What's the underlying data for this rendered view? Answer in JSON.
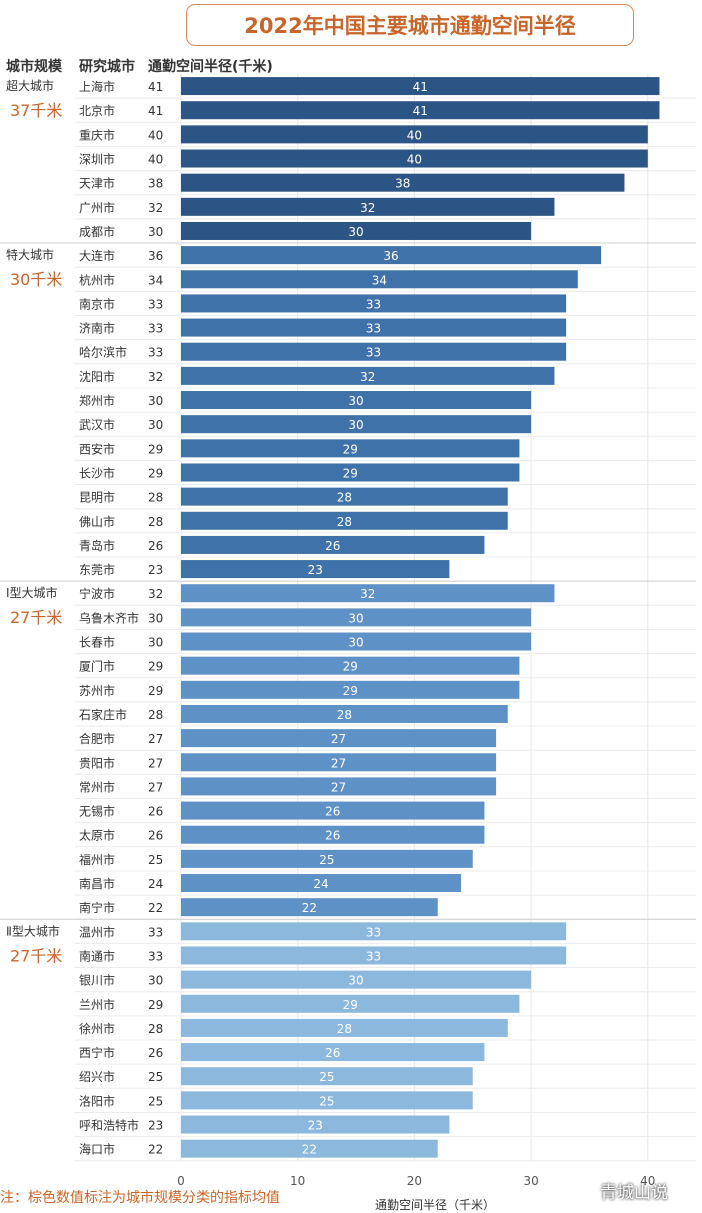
{
  "title": "2022年中国主要城市通勤空间半径",
  "headers": {
    "tier": "城市规模",
    "city": "研究城市",
    "value": "通勤空间半径(千米)"
  },
  "note": "注：棕色数值标注为城市规模分类的指标均值",
  "watermark": "青城山说",
  "colors": {
    "title": "#c8652a",
    "tier_avg": "#c8652a",
    "tier_fills": [
      "#2c5585",
      "#3f72a8",
      "#5e92c6",
      "#8db8dd"
    ]
  },
  "chart_data": {
    "type": "bar",
    "orientation": "horizontal",
    "xlabel": "通勤空间半径（千米）",
    "xlim": [
      0,
      44
    ],
    "xticks": [
      0,
      10,
      20,
      30,
      40
    ],
    "grid": true,
    "groups": [
      {
        "name": "超大城市",
        "average": "37千米",
        "cities": [
          "上海市",
          "北京市",
          "重庆市",
          "深圳市",
          "天津市",
          "广州市",
          "成都市"
        ],
        "values": [
          41,
          41,
          40,
          40,
          38,
          32,
          30
        ]
      },
      {
        "name": "特大城市",
        "average": "30千米",
        "cities": [
          "大连市",
          "杭州市",
          "南京市",
          "济南市",
          "哈尔滨市",
          "沈阳市",
          "郑州市",
          "武汉市",
          "西安市",
          "长沙市",
          "昆明市",
          "佛山市",
          "青岛市",
          "东莞市"
        ],
        "values": [
          36,
          34,
          33,
          33,
          33,
          32,
          30,
          30,
          29,
          29,
          28,
          28,
          26,
          23
        ]
      },
      {
        "name": "Ⅰ型大城市",
        "average": "27千米",
        "cities": [
          "宁波市",
          "乌鲁木齐市",
          "长春市",
          "厦门市",
          "苏州市",
          "石家庄市",
          "合肥市",
          "贵阳市",
          "常州市",
          "无锡市",
          "太原市",
          "福州市",
          "南昌市",
          "南宁市"
        ],
        "values": [
          32,
          30,
          30,
          29,
          29,
          28,
          27,
          27,
          27,
          26,
          26,
          25,
          24,
          22
        ]
      },
      {
        "name": "Ⅱ型大城市",
        "average": "27千米",
        "cities": [
          "温州市",
          "南通市",
          "银川市",
          "兰州市",
          "徐州市",
          "西宁市",
          "绍兴市",
          "洛阳市",
          "呼和浩特市",
          "海口市"
        ],
        "values": [
          33,
          33,
          30,
          29,
          28,
          26,
          25,
          25,
          23,
          22
        ]
      }
    ]
  }
}
